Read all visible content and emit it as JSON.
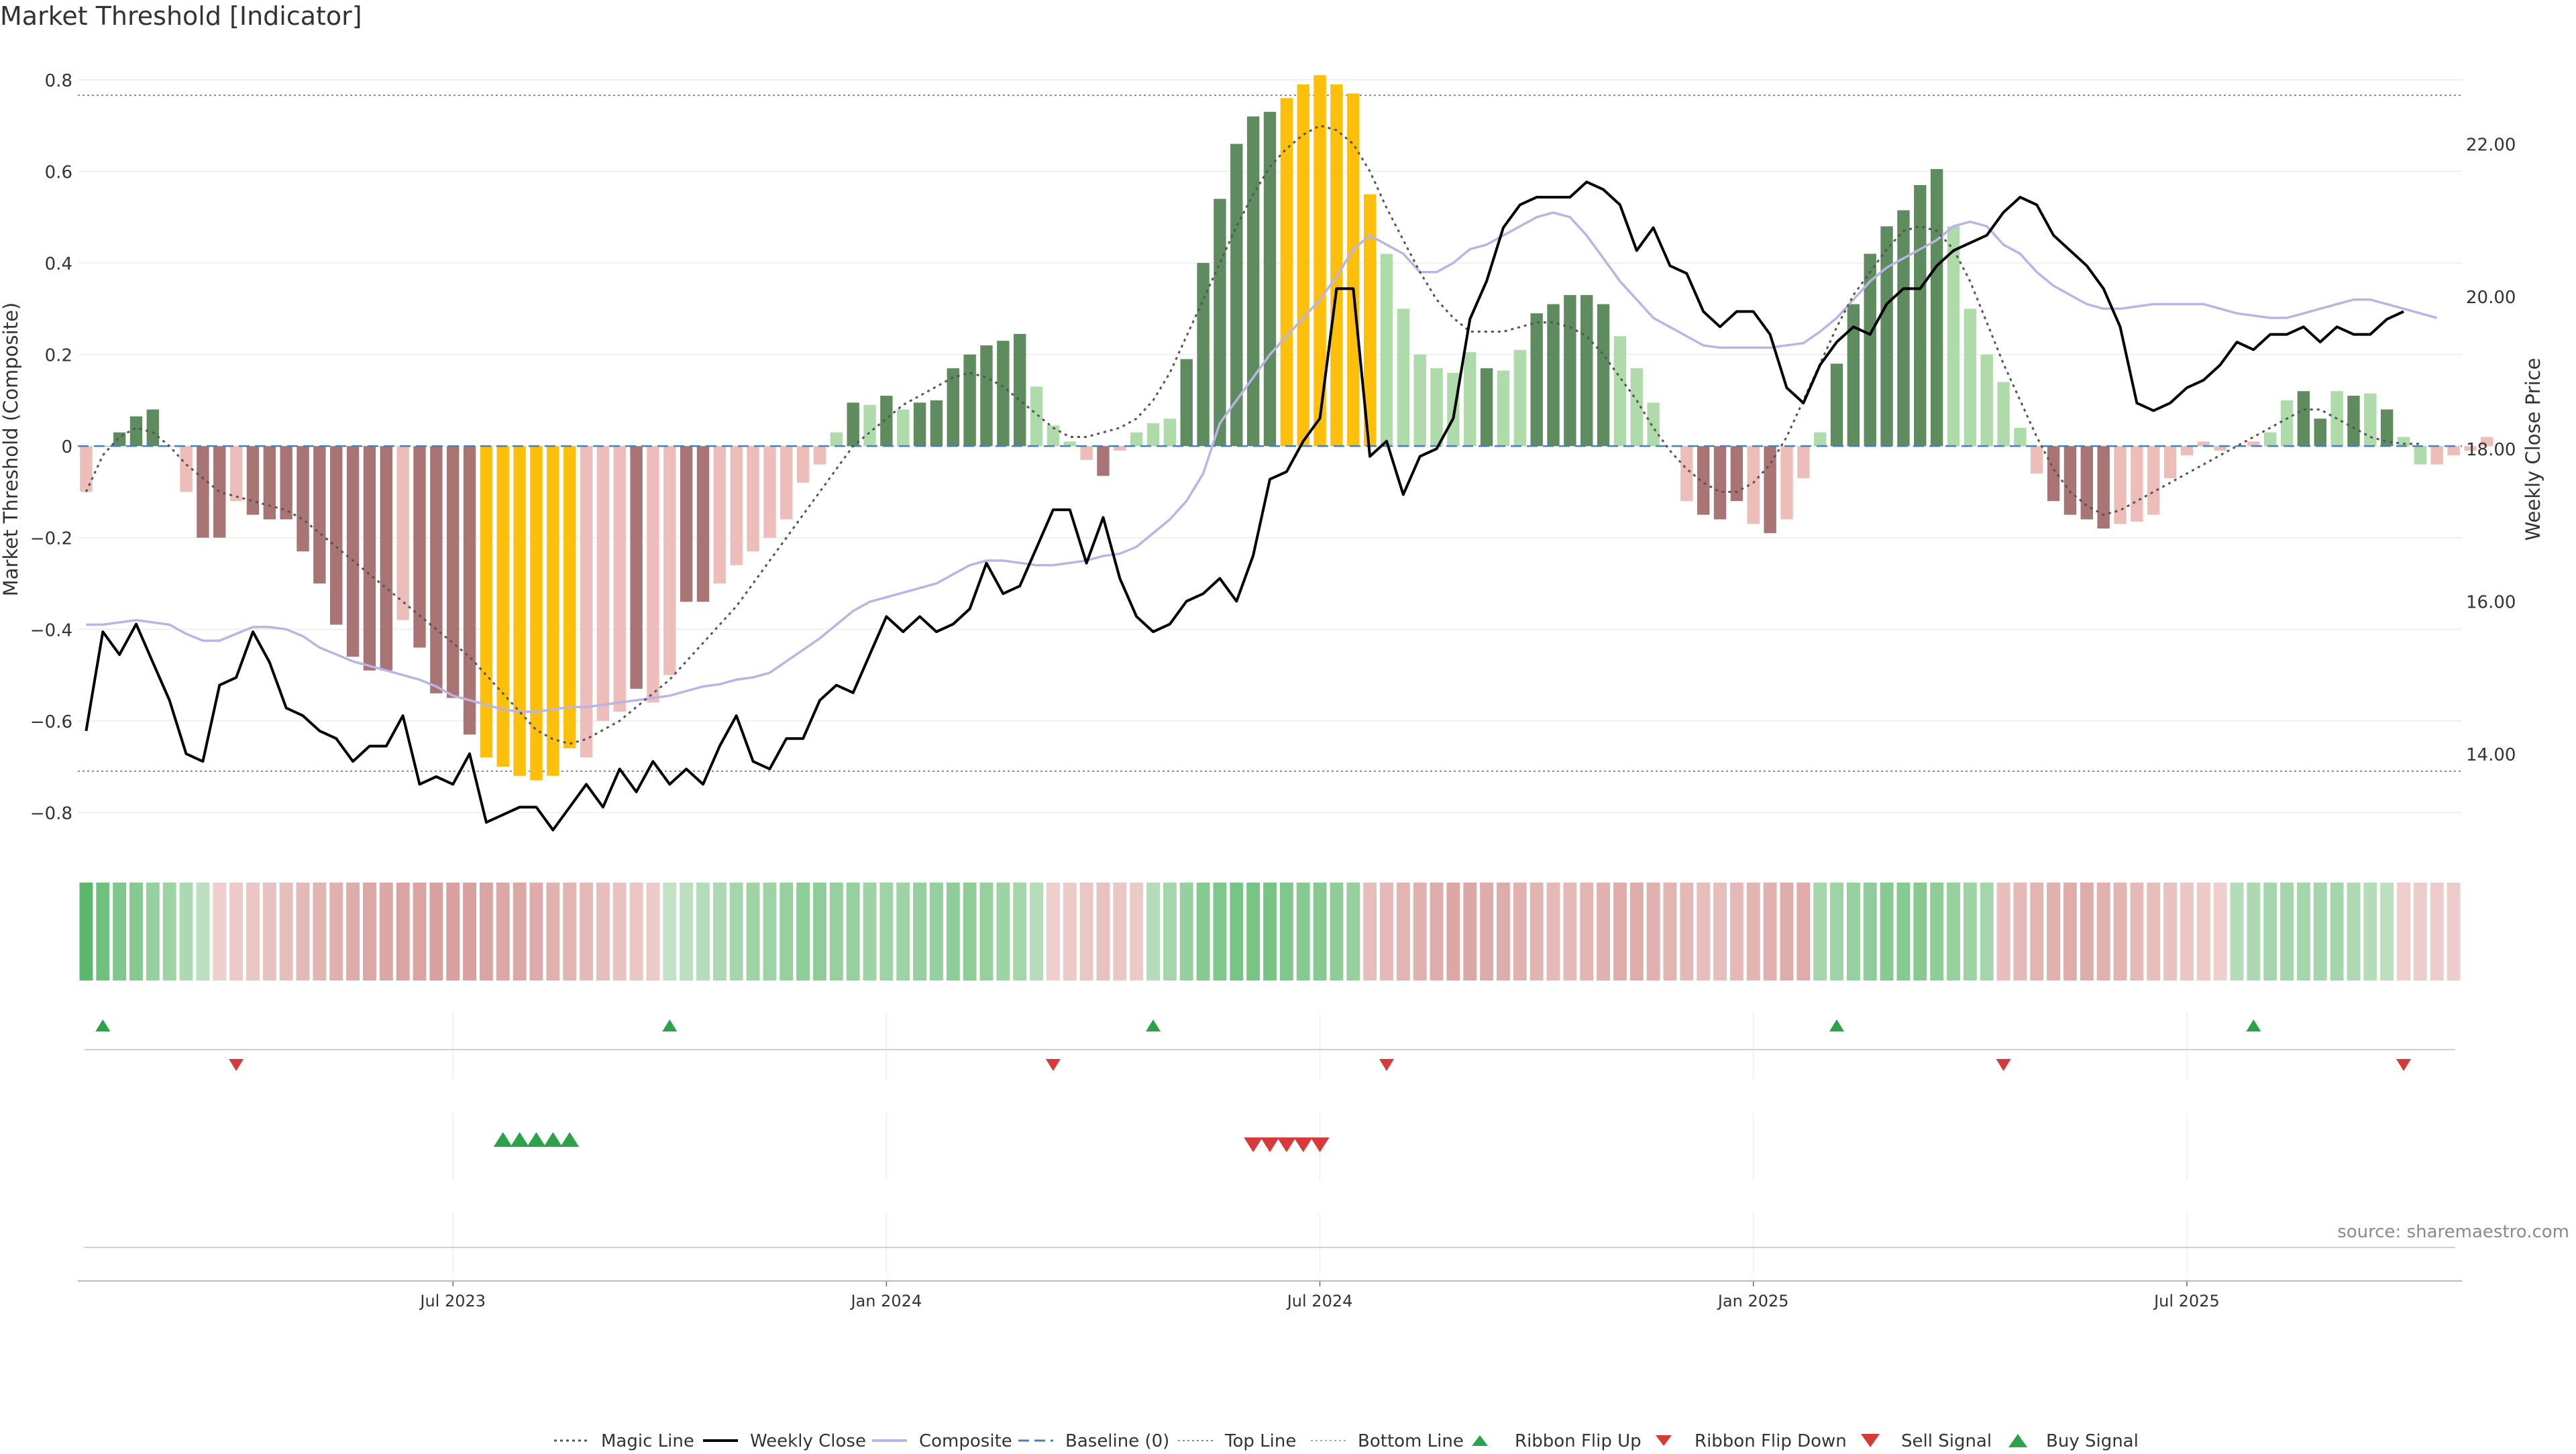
{
  "page_title": "Market Threshold [Indicator]",
  "source_note": "source: sharemaestro.com",
  "colors": {
    "dark_red": "#a87574",
    "light_red": "#edbdb9",
    "dark_green": "#5e8c5e",
    "light_green": "#afdaa9",
    "yellow": "#fbbf0c",
    "close_line": "#000000",
    "composite_line": "#b9b4e6",
    "magic_line": "#555555",
    "baseline": "#4a7fb0",
    "flip_up": "#2ca24a",
    "flip_down": "#d63a3a"
  },
  "chart_data": {
    "type": "bar",
    "title": "Market Threshold [Indicator]",
    "ylabel": "Market Threshold (Composite)",
    "y2label": "Weekly Close Price",
    "ylim": [
      -0.88,
      0.86
    ],
    "y2lim": [
      12.75,
      23.2
    ],
    "yticks": [
      "0.8",
      "0.6",
      "0.4",
      "0.2",
      "0",
      "−0.2",
      "−0.4",
      "−0.6",
      "−0.8"
    ],
    "ytick_values": [
      0.8,
      0.6,
      0.4,
      0.2,
      0,
      -0.2,
      -0.4,
      -0.6,
      -0.8
    ],
    "y2ticks": [
      "22.00",
      "20.00",
      "18.00",
      "16.00",
      "14.00"
    ],
    "y2tick_values": [
      22,
      20,
      18,
      16,
      14
    ],
    "top_line": 0.766,
    "bottom_line": -0.71,
    "baseline": 0,
    "x_tick_labels": [
      "Jul 2023",
      "Jan 2024",
      "Jul 2024",
      "Jan 2025",
      "Jul 2025"
    ],
    "x_tick_weeks": [
      22,
      48,
      74,
      100,
      126
    ],
    "weeks": 143,
    "bar_values": [
      -0.1,
      0.0,
      0.03,
      0.065,
      0.08,
      0.0,
      -0.1,
      -0.2,
      -0.2,
      -0.12,
      -0.15,
      -0.16,
      -0.16,
      -0.23,
      -0.3,
      -0.39,
      -0.46,
      -0.49,
      -0.49,
      -0.38,
      -0.44,
      -0.54,
      -0.55,
      -0.63,
      -0.68,
      -0.7,
      -0.72,
      -0.73,
      -0.72,
      -0.66,
      -0.68,
      -0.6,
      -0.58,
      -0.53,
      -0.56,
      -0.5,
      -0.34,
      -0.34,
      -0.3,
      -0.26,
      -0.23,
      -0.2,
      -0.16,
      -0.08,
      -0.04,
      0.03,
      0.095,
      0.09,
      0.11,
      0.08,
      0.095,
      0.1,
      0.17,
      0.2,
      0.22,
      0.23,
      0.245,
      0.13,
      0.045,
      0.01,
      -0.03,
      -0.065,
      -0.01,
      0.03,
      0.05,
      0.06,
      0.19,
      0.4,
      0.54,
      0.66,
      0.72,
      0.73,
      0.76,
      0.79,
      0.81,
      0.79,
      0.77,
      0.55,
      0.42,
      0.3,
      0.2,
      0.17,
      0.16,
      0.205,
      0.17,
      0.165,
      0.21,
      0.29,
      0.31,
      0.33,
      0.33,
      0.31,
      0.24,
      0.17,
      0.095,
      0.0,
      -0.12,
      -0.15,
      -0.16,
      -0.12,
      -0.17,
      -0.19,
      -0.16,
      -0.07,
      0.03,
      0.18,
      0.31,
      0.42,
      0.48,
      0.515,
      0.57,
      0.605,
      0.48,
      0.3,
      0.2,
      0.14,
      0.04,
      -0.06,
      -0.12,
      -0.15,
      -0.16,
      -0.18,
      -0.17,
      -0.165,
      -0.15,
      -0.07,
      -0.02,
      0.01,
      -0.01,
      0.0,
      0.01,
      0.03,
      0.1,
      0.12,
      0.06,
      0.12,
      0.11,
      0.115,
      0.08,
      0.02,
      -0.04,
      -0.04,
      -0.02,
      -0.01,
      0.02
    ],
    "bar_categories": [
      "light_red",
      "dark_green",
      "dark_green",
      "dark_green",
      "dark_green",
      "light_red",
      "light_red",
      "dark_red",
      "dark_red",
      "light_red",
      "dark_red",
      "dark_red",
      "dark_red",
      "dark_red",
      "dark_red",
      "dark_red",
      "dark_red",
      "dark_red",
      "dark_red",
      "light_red",
      "dark_red",
      "dark_red",
      "dark_red",
      "dark_red",
      "yellow",
      "yellow",
      "yellow",
      "yellow",
      "yellow",
      "yellow",
      "light_red",
      "light_red",
      "light_red",
      "dark_red",
      "light_red",
      "light_red",
      "dark_red",
      "dark_red",
      "light_red",
      "light_red",
      "light_red",
      "light_red",
      "light_red",
      "light_red",
      "light_red",
      "light_green",
      "dark_green",
      "light_green",
      "dark_green",
      "light_green",
      "dark_green",
      "dark_green",
      "dark_green",
      "dark_green",
      "dark_green",
      "dark_green",
      "dark_green",
      "light_green",
      "light_green",
      "light_green",
      "light_red",
      "dark_red",
      "light_red",
      "light_green",
      "light_green",
      "light_green",
      "dark_green",
      "dark_green",
      "dark_green",
      "dark_green",
      "dark_green",
      "dark_green",
      "yellow",
      "yellow",
      "yellow",
      "yellow",
      "yellow",
      "yellow",
      "light_green",
      "light_green",
      "light_green",
      "light_green",
      "light_green",
      "light_green",
      "dark_green",
      "light_green",
      "light_green",
      "dark_green",
      "dark_green",
      "dark_green",
      "dark_green",
      "dark_green",
      "light_green",
      "light_green",
      "light_green",
      "light_green",
      "light_red",
      "dark_red",
      "dark_red",
      "dark_red",
      "light_red",
      "dark_red",
      "light_red",
      "light_red",
      "light_green",
      "dark_green",
      "dark_green",
      "dark_green",
      "dark_green",
      "dark_green",
      "dark_green",
      "dark_green",
      "light_green",
      "light_green",
      "light_green",
      "light_green",
      "light_green",
      "light_red",
      "dark_red",
      "dark_red",
      "dark_red",
      "dark_red",
      "light_red",
      "light_red",
      "light_red",
      "light_red",
      "light_red",
      "light_red",
      "light_red",
      "light_green",
      "light_red",
      "light_green",
      "light_green",
      "dark_green",
      "dark_green",
      "light_green",
      "dark_green",
      "light_green",
      "dark_green",
      "light_green",
      "light_green",
      "light_red",
      "light_red",
      "light_red",
      "light_red",
      "light_green"
    ],
    "weekly_close": [
      14.3,
      15.6,
      15.3,
      15.7,
      15.2,
      14.7,
      14.0,
      13.9,
      14.9,
      15.0,
      15.6,
      15.2,
      14.6,
      14.5,
      14.3,
      14.2,
      13.9,
      14.1,
      14.1,
      14.5,
      13.6,
      13.7,
      13.6,
      14.0,
      13.1,
      13.2,
      13.3,
      13.3,
      13.0,
      13.3,
      13.6,
      13.3,
      13.8,
      13.5,
      13.9,
      13.6,
      13.8,
      13.6,
      14.1,
      14.5,
      13.9,
      13.8,
      14.2,
      14.2,
      14.7,
      14.9,
      14.8,
      15.3,
      15.8,
      15.6,
      15.8,
      15.6,
      15.7,
      15.9,
      16.5,
      16.1,
      16.2,
      16.7,
      17.2,
      17.2,
      16.5,
      17.1,
      16.3,
      15.8,
      15.6,
      15.7,
      16.0,
      16.1,
      16.3,
      16.0,
      16.6,
      17.6,
      17.7,
      18.1,
      18.4,
      20.1,
      20.1,
      17.9,
      18.1,
      17.4,
      17.9,
      18.0,
      18.4,
      19.7,
      20.2,
      20.9,
      21.2,
      21.3,
      21.3,
      21.3,
      21.5,
      21.4,
      21.2,
      20.6,
      20.9,
      20.4,
      20.3,
      19.8,
      19.6,
      19.8,
      19.8,
      19.5,
      18.8,
      18.6,
      19.1,
      19.4,
      19.6,
      19.5,
      19.9,
      20.1,
      20.1,
      20.4,
      20.6,
      20.7,
      20.8,
      21.1,
      21.3,
      21.2,
      20.8,
      20.6,
      20.4,
      20.1,
      19.6,
      18.6,
      18.5,
      18.6,
      18.8,
      18.9,
      19.1,
      19.4,
      19.3,
      19.5,
      19.5,
      19.6,
      19.4,
      19.6,
      19.5,
      19.5,
      19.7,
      19.8
    ],
    "composite": [
      -0.39,
      -0.39,
      -0.385,
      -0.38,
      -0.385,
      -0.39,
      -0.41,
      -0.425,
      -0.425,
      -0.41,
      -0.395,
      -0.395,
      -0.4,
      -0.415,
      -0.44,
      -0.455,
      -0.47,
      -0.48,
      -0.49,
      -0.5,
      -0.51,
      -0.525,
      -0.545,
      -0.555,
      -0.565,
      -0.575,
      -0.58,
      -0.58,
      -0.575,
      -0.57,
      -0.57,
      -0.565,
      -0.56,
      -0.555,
      -0.55,
      -0.545,
      -0.535,
      -0.525,
      -0.52,
      -0.51,
      -0.505,
      -0.495,
      -0.47,
      -0.445,
      -0.42,
      -0.39,
      -0.36,
      -0.34,
      -0.33,
      -0.32,
      -0.31,
      -0.3,
      -0.28,
      -0.26,
      -0.25,
      -0.25,
      -0.255,
      -0.26,
      -0.26,
      -0.255,
      -0.25,
      -0.24,
      -0.235,
      -0.22,
      -0.19,
      -0.16,
      -0.12,
      -0.06,
      0.05,
      0.1,
      0.15,
      0.2,
      0.24,
      0.28,
      0.32,
      0.37,
      0.43,
      0.46,
      0.44,
      0.42,
      0.38,
      0.38,
      0.4,
      0.43,
      0.44,
      0.46,
      0.48,
      0.5,
      0.51,
      0.5,
      0.46,
      0.41,
      0.36,
      0.32,
      0.28,
      0.26,
      0.24,
      0.22,
      0.215,
      0.215,
      0.215,
      0.215,
      0.22,
      0.225,
      0.25,
      0.28,
      0.32,
      0.36,
      0.39,
      0.41,
      0.43,
      0.45,
      0.48,
      0.49,
      0.48,
      0.44,
      0.42,
      0.38,
      0.35,
      0.33,
      0.31,
      0.3,
      0.3,
      0.305,
      0.31,
      0.31,
      0.31,
      0.31,
      0.3,
      0.29,
      0.285,
      0.28,
      0.28,
      0.29,
      0.3,
      0.31,
      0.32,
      0.32,
      0.31,
      0.3,
      0.29,
      0.28
    ],
    "magic_line": [
      -0.1,
      -0.02,
      0.02,
      0.04,
      0.03,
      0.0,
      -0.04,
      -0.07,
      -0.1,
      -0.11,
      -0.12,
      -0.13,
      -0.14,
      -0.16,
      -0.19,
      -0.22,
      -0.25,
      -0.28,
      -0.31,
      -0.34,
      -0.37,
      -0.4,
      -0.43,
      -0.46,
      -0.5,
      -0.54,
      -0.58,
      -0.62,
      -0.64,
      -0.65,
      -0.64,
      -0.62,
      -0.6,
      -0.57,
      -0.54,
      -0.51,
      -0.47,
      -0.43,
      -0.39,
      -0.35,
      -0.3,
      -0.25,
      -0.2,
      -0.15,
      -0.1,
      -0.05,
      0.0,
      0.03,
      0.06,
      0.09,
      0.11,
      0.13,
      0.15,
      0.16,
      0.15,
      0.13,
      0.1,
      0.07,
      0.04,
      0.02,
      0.02,
      0.03,
      0.04,
      0.06,
      0.1,
      0.16,
      0.24,
      0.32,
      0.4,
      0.48,
      0.55,
      0.61,
      0.65,
      0.68,
      0.7,
      0.69,
      0.66,
      0.6,
      0.52,
      0.45,
      0.38,
      0.32,
      0.28,
      0.25,
      0.25,
      0.25,
      0.26,
      0.27,
      0.27,
      0.26,
      0.24,
      0.2,
      0.15,
      0.1,
      0.04,
      -0.01,
      -0.05,
      -0.08,
      -0.1,
      -0.1,
      -0.08,
      -0.04,
      0.02,
      0.1,
      0.18,
      0.26,
      0.33,
      0.38,
      0.43,
      0.47,
      0.48,
      0.47,
      0.43,
      0.36,
      0.27,
      0.18,
      0.1,
      0.02,
      -0.05,
      -0.1,
      -0.13,
      -0.15,
      -0.14,
      -0.12,
      -0.1,
      -0.08,
      -0.06,
      -0.04,
      -0.02,
      0.0,
      0.02,
      0.04,
      0.06,
      0.08,
      0.08,
      0.06,
      0.04,
      0.02,
      0.01,
      0.005,
      0.005
    ],
    "ribbon": [
      0.8,
      0.65,
      0.55,
      0.5,
      0.4,
      0.35,
      0.25,
      0.15,
      -0.1,
      -0.15,
      -0.2,
      -0.25,
      -0.3,
      -0.35,
      -0.4,
      -0.45,
      -0.5,
      -0.55,
      -0.55,
      -0.6,
      -0.6,
      -0.65,
      -0.65,
      -0.65,
      -0.6,
      -0.55,
      -0.55,
      -0.5,
      -0.45,
      -0.4,
      -0.35,
      -0.3,
      -0.25,
      -0.2,
      -0.15,
      0.1,
      0.15,
      0.2,
      0.25,
      0.3,
      0.35,
      0.35,
      0.4,
      0.45,
      0.45,
      0.4,
      0.4,
      0.35,
      0.35,
      0.35,
      0.4,
      0.4,
      0.45,
      0.45,
      0.4,
      0.35,
      0.3,
      0.2,
      -0.1,
      -0.15,
      -0.2,
      -0.25,
      -0.2,
      -0.15,
      0.2,
      0.3,
      0.4,
      0.5,
      0.55,
      0.6,
      0.6,
      0.6,
      0.55,
      0.5,
      0.5,
      0.45,
      0.4,
      -0.3,
      -0.35,
      -0.4,
      -0.45,
      -0.5,
      -0.55,
      -0.55,
      -0.5,
      -0.5,
      -0.45,
      -0.4,
      -0.35,
      -0.35,
      -0.4,
      -0.45,
      -0.5,
      -0.5,
      -0.45,
      -0.4,
      -0.35,
      -0.3,
      -0.3,
      -0.35,
      -0.4,
      -0.45,
      -0.5,
      -0.5,
      0.3,
      0.35,
      0.4,
      0.45,
      0.5,
      0.5,
      0.5,
      0.45,
      0.4,
      0.35,
      0.3,
      -0.3,
      -0.35,
      -0.4,
      -0.45,
      -0.5,
      -0.5,
      -0.45,
      -0.4,
      -0.35,
      -0.3,
      -0.25,
      -0.2,
      -0.15,
      -0.1,
      0.2,
      0.25,
      0.3,
      0.3,
      0.3,
      0.3,
      0.3,
      0.25,
      0.2,
      0.15,
      -0.1,
      -0.12,
      -0.12,
      -0.12
    ],
    "ribbon_flip_up_weeks": [
      1,
      35,
      64,
      105,
      130
    ],
    "ribbon_flip_down_weeks": [
      9,
      58,
      78,
      115,
      139
    ],
    "buy_signal_weeks": [
      25,
      26,
      27,
      28,
      29
    ],
    "sell_signal_weeks": [
      70,
      71,
      72,
      73,
      74
    ],
    "legend": [
      "Magic Line",
      "Weekly Close",
      "Composite",
      "Baseline (0)",
      "Top Line",
      "Bottom Line",
      "Ribbon Flip Up",
      "Ribbon Flip Down",
      "Sell Signal",
      "Buy Signal"
    ]
  }
}
